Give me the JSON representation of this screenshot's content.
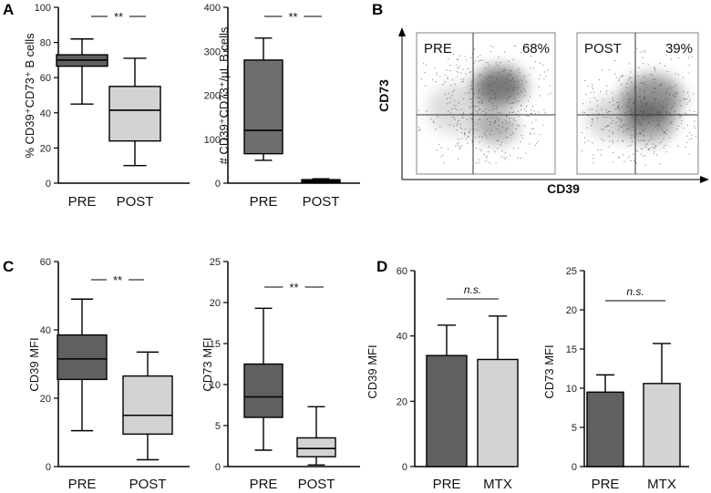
{
  "panel_letters": {
    "A": "A",
    "B": "B",
    "C": "C",
    "D": "D"
  },
  "sig_labels": {
    "double_star": "**",
    "ns": "n.s."
  },
  "chart_data": [
    {
      "id": "a1",
      "type": "boxplot",
      "ylabel": "% CD39⁺CD73⁺ B cells",
      "ylim": [
        0,
        100
      ],
      "yticks": [
        "0",
        "20",
        "40",
        "60",
        "80",
        "100"
      ],
      "significance": "**",
      "categories": [
        "PRE",
        "POST"
      ],
      "boxes": [
        {
          "min": 45,
          "q1": 66.5,
          "median": 70,
          "q3": 73,
          "max": 82,
          "color": "#606060"
        },
        {
          "min": 10,
          "q1": 24,
          "median": 41.5,
          "q3": 55,
          "max": 71,
          "color": "#d3d3d3"
        }
      ]
    },
    {
      "id": "a2",
      "type": "boxplot",
      "ylabel": "# CD39⁺CD73⁺/µL B cells",
      "ylim": [
        0,
        400
      ],
      "yticks": [
        "0",
        "100",
        "200",
        "300",
        "400"
      ],
      "significance": "**",
      "categories": [
        "PRE",
        "POST"
      ],
      "boxes": [
        {
          "min": 52,
          "q1": 67,
          "median": 120,
          "q3": 280,
          "max": 330,
          "color": "#6e6e6e"
        },
        {
          "min": 1,
          "q1": 3,
          "median": 5,
          "q3": 8,
          "max": 10,
          "color": "#1a1a1a"
        }
      ]
    },
    {
      "id": "c1",
      "type": "boxplot",
      "ylabel": "CD39 MFI",
      "ylim": [
        0,
        60
      ],
      "yticks": [
        "0",
        "20",
        "40",
        "60"
      ],
      "significance": "**",
      "categories": [
        "PRE",
        "POST"
      ],
      "boxes": [
        {
          "min": 10.5,
          "q1": 25.5,
          "median": 31.5,
          "q3": 38.5,
          "max": 49,
          "color": "#606060"
        },
        {
          "min": 2,
          "q1": 9.5,
          "median": 15,
          "q3": 26.5,
          "max": 33.5,
          "color": "#d3d3d3"
        }
      ]
    },
    {
      "id": "c2",
      "type": "boxplot",
      "ylabel": "CD73 MFI",
      "ylim": [
        0,
        25
      ],
      "yticks": [
        "0",
        "5",
        "10",
        "15",
        "20",
        "25"
      ],
      "significance": "**",
      "categories": [
        "PRE",
        "POST"
      ],
      "boxes": [
        {
          "min": 2,
          "q1": 6,
          "median": 8.5,
          "q3": 12.5,
          "max": 19.3,
          "color": "#606060"
        },
        {
          "min": 0.2,
          "q1": 1.2,
          "median": 2.2,
          "q3": 3.5,
          "max": 7.3,
          "color": "#d3d3d3"
        }
      ]
    },
    {
      "id": "d1",
      "type": "bar",
      "ylabel": "CD39 MFI",
      "ylim": [
        0,
        60
      ],
      "yticks": [
        "0",
        "20",
        "40",
        "60"
      ],
      "significance": "n.s.",
      "categories": [
        "PRE",
        "MTX"
      ],
      "values": [
        34,
        32.8
      ],
      "errors": [
        9.3,
        13.3
      ],
      "colors": [
        "#606060",
        "#d3d3d3"
      ]
    },
    {
      "id": "d2",
      "type": "bar",
      "ylabel": "CD73 MFI",
      "ylim": [
        0,
        25
      ],
      "yticks": [
        "0",
        "5",
        "10",
        "15",
        "20",
        "25"
      ],
      "significance": "n.s.",
      "categories": [
        "PRE",
        "MTX"
      ],
      "values": [
        9.5,
        10.6
      ],
      "errors": [
        2.2,
        5.1
      ],
      "colors": [
        "#606060",
        "#d3d3d3"
      ]
    },
    {
      "id": "b",
      "type": "scatter",
      "ylabel": "CD73",
      "xlabel": "CD39",
      "panels": [
        {
          "label": "PRE",
          "percent": "68%"
        },
        {
          "label": "POST",
          "percent": "39%"
        }
      ]
    }
  ]
}
